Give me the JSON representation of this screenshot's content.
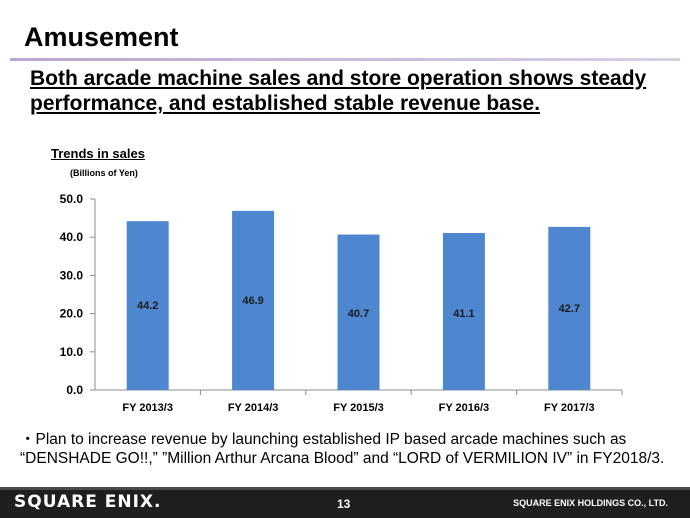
{
  "page": {
    "title": "Amusement",
    "subtitle": "Both arcade machine sales and store operation shows steady performance, and established stable revenue base.",
    "bullet": "・Plan to increase revenue by launching established IP based arcade machines such as “DENSHADE GO!!,” ”Million Arthur Arcana Blood” and “LORD of VERMILION IV” in FY2018/3.",
    "footer": {
      "logo": "SQUARE ENIX.",
      "page_number": "13",
      "company": "SQUARE ENIX HOLDINGS CO., LTD."
    }
  },
  "chart_data": {
    "type": "bar",
    "title": "Trends in sales",
    "unit_label": "(Billions of Yen)",
    "categories": [
      "FY 2013/3",
      "FY 2014/3",
      "FY 2015/3",
      "FY 2016/3",
      "FY 2017/3"
    ],
    "values": [
      44.2,
      46.9,
      40.7,
      41.1,
      42.7
    ],
    "value_labels": [
      "44.2",
      "46.9",
      "40.7",
      "41.1",
      "42.7"
    ],
    "ylim": [
      0,
      50
    ],
    "yticks": [
      "0.0",
      "10.0",
      "20.0",
      "30.0",
      "40.0",
      "50.0"
    ],
    "bar_color": "#4f86d0",
    "grid": false
  }
}
